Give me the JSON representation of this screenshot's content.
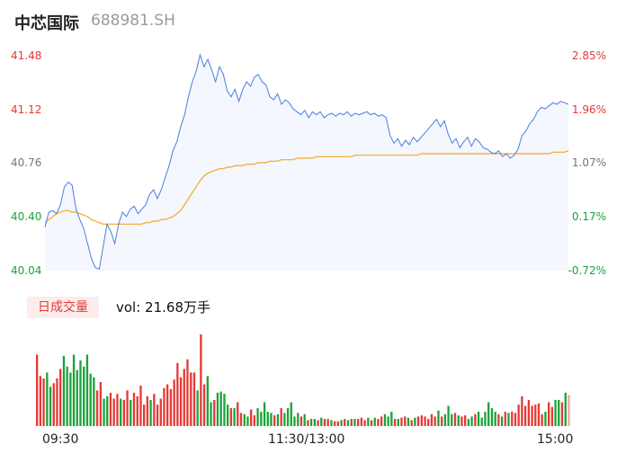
{
  "header": {
    "name": "中芯国际",
    "code": "688981.SH"
  },
  "price_axis": {
    "left_ticks": [
      "41.48",
      "41.12",
      "40.76",
      "40.40",
      "40.04"
    ],
    "right_ticks": [
      "2.85%",
      "1.96%",
      "1.07%",
      "0.17%",
      "-0.72%"
    ]
  },
  "volume_panel": {
    "badge": "日成交量",
    "volume_label": "vol: 21.68万手"
  },
  "time_axis": [
    "09:30",
    "11:30/13:00",
    "15:00"
  ],
  "colors": {
    "up": "#e53935",
    "down": "#1aa33a",
    "neutral": "#777777",
    "price_line": "#4a7ee0",
    "avg_line": "#f5a623"
  },
  "chart_data": [
    {
      "type": "line",
      "yrange": [
        40.04,
        41.48
      ],
      "series": [
        {
          "values": [
            40.33,
            40.43,
            40.44,
            40.42,
            40.48,
            40.6,
            40.63,
            40.61,
            40.45,
            40.38,
            40.32,
            40.22,
            40.12,
            40.06,
            40.05,
            40.2,
            40.35,
            40.3,
            40.22,
            40.35,
            40.43,
            40.4,
            40.45,
            40.47,
            40.42,
            40.45,
            40.48,
            40.55,
            40.58,
            40.52,
            40.58,
            40.66,
            40.74,
            40.84,
            40.9,
            41.0,
            41.08,
            41.2,
            41.3,
            41.37,
            41.48,
            41.4,
            41.45,
            41.38,
            41.3,
            41.4,
            41.35,
            41.24,
            41.2,
            41.25,
            41.17,
            41.25,
            41.3,
            41.27,
            41.33,
            41.35,
            41.3,
            41.28,
            41.2,
            41.18,
            41.22,
            41.15,
            41.18,
            41.16,
            41.12,
            41.1,
            41.08,
            41.11,
            41.06,
            41.1,
            41.08,
            41.1,
            41.06,
            41.08,
            41.09,
            41.07,
            41.09,
            41.08,
            41.1,
            41.07,
            41.09,
            41.08,
            41.09,
            41.1,
            41.08,
            41.09,
            41.07,
            41.08,
            41.06,
            40.94,
            40.89,
            40.92,
            40.87,
            40.91,
            40.88,
            40.93,
            40.9,
            40.93,
            40.96,
            40.99,
            41.02,
            41.05,
            41.0,
            41.04,
            40.95,
            40.89,
            40.92,
            40.86,
            40.9,
            40.93,
            40.87,
            40.92,
            40.9,
            40.86,
            40.85,
            40.83,
            40.82,
            40.84,
            40.8,
            40.82,
            40.79,
            40.81,
            40.85,
            40.94,
            40.97,
            41.02,
            41.05,
            41.1,
            41.13,
            41.12,
            41.14,
            41.16,
            41.15,
            41.17,
            41.16,
            41.15
          ]
        },
        {
          "values": [
            40.36,
            40.38,
            40.4,
            40.42,
            40.43,
            40.44,
            40.44,
            40.43,
            40.43,
            40.42,
            40.41,
            40.4,
            40.38,
            40.37,
            40.36,
            40.35,
            40.35,
            40.35,
            40.35,
            40.35,
            40.35,
            40.35,
            40.35,
            40.35,
            40.35,
            40.35,
            40.36,
            40.36,
            40.37,
            40.37,
            40.38,
            40.38,
            40.39,
            40.4,
            40.42,
            40.44,
            40.48,
            40.52,
            40.56,
            40.6,
            40.64,
            40.67,
            40.69,
            40.7,
            40.71,
            40.72,
            40.72,
            40.73,
            40.73,
            40.74,
            40.74,
            40.74,
            40.75,
            40.75,
            40.75,
            40.76,
            40.76,
            40.76,
            40.77,
            40.77,
            40.77,
            40.78,
            40.78,
            40.78,
            40.78,
            40.79,
            40.79,
            40.79,
            40.79,
            40.79,
            40.8,
            40.8,
            40.8,
            40.8,
            40.8,
            40.8,
            40.8,
            40.8,
            40.8,
            40.8,
            40.81,
            40.81,
            40.81,
            40.81,
            40.81,
            40.81,
            40.81,
            40.81,
            40.81,
            40.81,
            40.81,
            40.81,
            40.81,
            40.81,
            40.81,
            40.81,
            40.81,
            40.82,
            40.82,
            40.82,
            40.82,
            40.82,
            40.82,
            40.82,
            40.82,
            40.82,
            40.82,
            40.82,
            40.82,
            40.82,
            40.82,
            40.82,
            40.82,
            40.82,
            40.82,
            40.82,
            40.82,
            40.82,
            40.82,
            40.82,
            40.82,
            40.82,
            40.82,
            40.82,
            40.82,
            40.82,
            40.82,
            40.82,
            40.82,
            40.82,
            40.82,
            40.83,
            40.83,
            40.83,
            40.83,
            40.84
          ]
        }
      ]
    },
    {
      "type": "bar",
      "series": [
        {
          "values": [
            60,
            42,
            40,
            45,
            33,
            36,
            40,
            48,
            59,
            50,
            45,
            60,
            47,
            55,
            50,
            60,
            44,
            41,
            30,
            37,
            23,
            25,
            28,
            23,
            27,
            23,
            22,
            30,
            22,
            28,
            25,
            34,
            18,
            25,
            22,
            27,
            18,
            23,
            32,
            35,
            31,
            39,
            53,
            41,
            48,
            56,
            45,
            45,
            30,
            77,
            35,
            42,
            20,
            22,
            28,
            29,
            27,
            18,
            15,
            15,
            20,
            11,
            10,
            8,
            14,
            9,
            15,
            12,
            20,
            12,
            11,
            9,
            10,
            15,
            11,
            15,
            20,
            8,
            11,
            8,
            10,
            5,
            6,
            6,
            5,
            7,
            6,
            6,
            5,
            4,
            4,
            5,
            6,
            5,
            6,
            6,
            6,
            7,
            5,
            7,
            5,
            7,
            6,
            8,
            10,
            8,
            12,
            6,
            6,
            7,
            8,
            7,
            5,
            7,
            8,
            9,
            8,
            6,
            10,
            8,
            13,
            8,
            10,
            17,
            10,
            11,
            9,
            8,
            9,
            6,
            8,
            10,
            12,
            7,
            12,
            20,
            15,
            12,
            10,
            8,
            12,
            11,
            12,
            11,
            18,
            25,
            17,
            22,
            17,
            18,
            19,
            10,
            12,
            20,
            16,
            22,
            22,
            20,
            28,
            26
          ]
        }
      ]
    }
  ]
}
